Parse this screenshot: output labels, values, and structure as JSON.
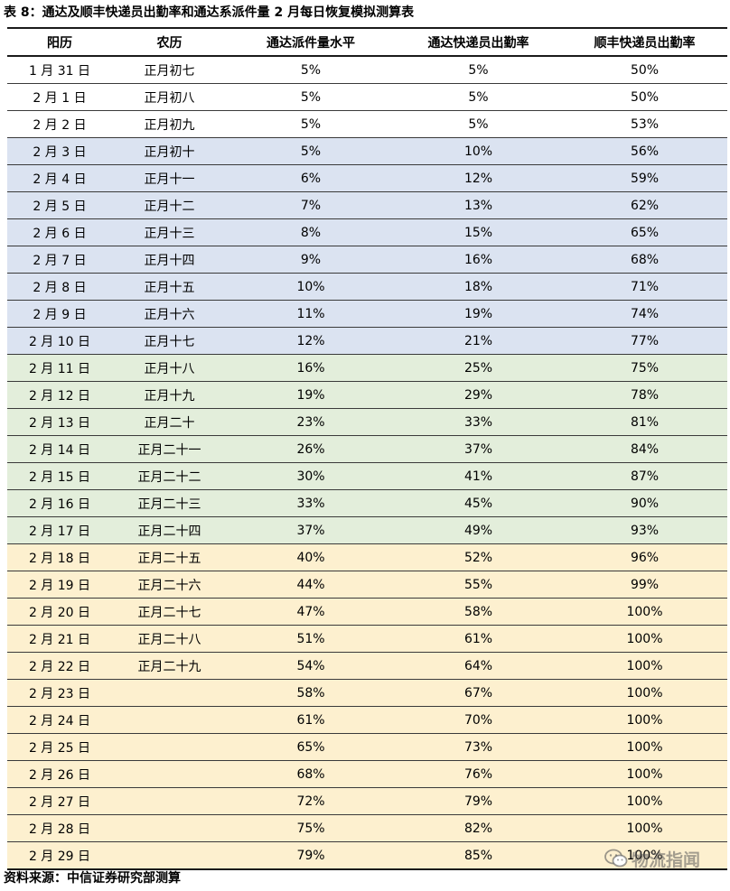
{
  "caption": "表 8：通达及顺丰快递员出勤率和通达系派件量 2 月每日恢复模拟测算表",
  "table": {
    "headers": [
      "阳历",
      "农历",
      "通达派件量水平",
      "通达快递员出勤率",
      "顺丰快递员出勤率"
    ],
    "rows": [
      {
        "band": "white",
        "cells": [
          "1 月 31 日",
          "正月初七",
          "5%",
          "5%",
          "50%"
        ]
      },
      {
        "band": "white",
        "cells": [
          "2 月 1 日",
          "正月初八",
          "5%",
          "5%",
          "50%"
        ]
      },
      {
        "band": "white",
        "cells": [
          "2 月 2 日",
          "正月初九",
          "5%",
          "5%",
          "53%"
        ]
      },
      {
        "band": "blue",
        "cells": [
          "2 月 3 日",
          "正月初十",
          "5%",
          "10%",
          "56%"
        ]
      },
      {
        "band": "blue",
        "cells": [
          "2 月 4 日",
          "正月十一",
          "6%",
          "12%",
          "59%"
        ]
      },
      {
        "band": "blue",
        "cells": [
          "2 月 5 日",
          "正月十二",
          "7%",
          "13%",
          "62%"
        ]
      },
      {
        "band": "blue",
        "cells": [
          "2 月 6 日",
          "正月十三",
          "8%",
          "15%",
          "65%"
        ]
      },
      {
        "band": "blue",
        "cells": [
          "2 月 7 日",
          "正月十四",
          "9%",
          "16%",
          "68%"
        ]
      },
      {
        "band": "blue",
        "cells": [
          "2 月 8 日",
          "正月十五",
          "10%",
          "18%",
          "71%"
        ]
      },
      {
        "band": "blue",
        "cells": [
          "2 月 9 日",
          "正月十六",
          "11%",
          "19%",
          "74%"
        ]
      },
      {
        "band": "blue",
        "cells": [
          "2 月 10 日",
          "正月十七",
          "12%",
          "21%",
          "77%"
        ]
      },
      {
        "band": "green",
        "cells": [
          "2 月 11 日",
          "正月十八",
          "16%",
          "25%",
          "75%"
        ]
      },
      {
        "band": "green",
        "cells": [
          "2 月 12 日",
          "正月十九",
          "19%",
          "29%",
          "78%"
        ]
      },
      {
        "band": "green",
        "cells": [
          "2 月 13 日",
          "正月二十",
          "23%",
          "33%",
          "81%"
        ]
      },
      {
        "band": "green",
        "cells": [
          "2 月 14 日",
          "正月二十一",
          "26%",
          "37%",
          "84%"
        ]
      },
      {
        "band": "green",
        "cells": [
          "2 月 15 日",
          "正月二十二",
          "30%",
          "41%",
          "87%"
        ]
      },
      {
        "band": "green",
        "cells": [
          "2 月 16 日",
          "正月二十三",
          "33%",
          "45%",
          "90%"
        ]
      },
      {
        "band": "green",
        "cells": [
          "2 月 17 日",
          "正月二十四",
          "37%",
          "49%",
          "93%"
        ]
      },
      {
        "band": "yellow",
        "cells": [
          "2 月 18 日",
          "正月二十五",
          "40%",
          "52%",
          "96%"
        ]
      },
      {
        "band": "yellow",
        "cells": [
          "2 月 19 日",
          "正月二十六",
          "44%",
          "55%",
          "99%"
        ]
      },
      {
        "band": "yellow",
        "cells": [
          "2 月 20 日",
          "正月二十七",
          "47%",
          "58%",
          "100%"
        ]
      },
      {
        "band": "yellow",
        "cells": [
          "2 月 21 日",
          "正月二十八",
          "51%",
          "61%",
          "100%"
        ]
      },
      {
        "band": "yellow",
        "cells": [
          "2 月 22 日",
          "正月二十九",
          "54%",
          "64%",
          "100%"
        ]
      },
      {
        "band": "yellow",
        "cells": [
          "2 月 23 日",
          "",
          "58%",
          "67%",
          "100%"
        ]
      },
      {
        "band": "yellow",
        "cells": [
          "2 月 24 日",
          "",
          "61%",
          "70%",
          "100%"
        ]
      },
      {
        "band": "yellow",
        "cells": [
          "2 月 25 日",
          "",
          "65%",
          "73%",
          "100%"
        ]
      },
      {
        "band": "yellow",
        "cells": [
          "2 月 26 日",
          "",
          "68%",
          "76%",
          "100%"
        ]
      },
      {
        "band": "yellow",
        "cells": [
          "2 月 27 日",
          "",
          "72%",
          "79%",
          "100%"
        ]
      },
      {
        "band": "yellow",
        "cells": [
          "2 月 28 日",
          "",
          "75%",
          "82%",
          "100%"
        ]
      },
      {
        "band": "yellow",
        "cells": [
          "2 月 29 日",
          "",
          "79%",
          "85%",
          "100%"
        ]
      }
    ]
  },
  "source": "资料来源：中信证券研究部测算",
  "watermark": {
    "icon": "wechat-icon",
    "text": "物流指闻"
  },
  "colors": {
    "blue_band": "#dbe3f1",
    "green_band": "#e3eedb",
    "yellow_band": "#fdf0cf",
    "rule": "#1a1a1a"
  }
}
